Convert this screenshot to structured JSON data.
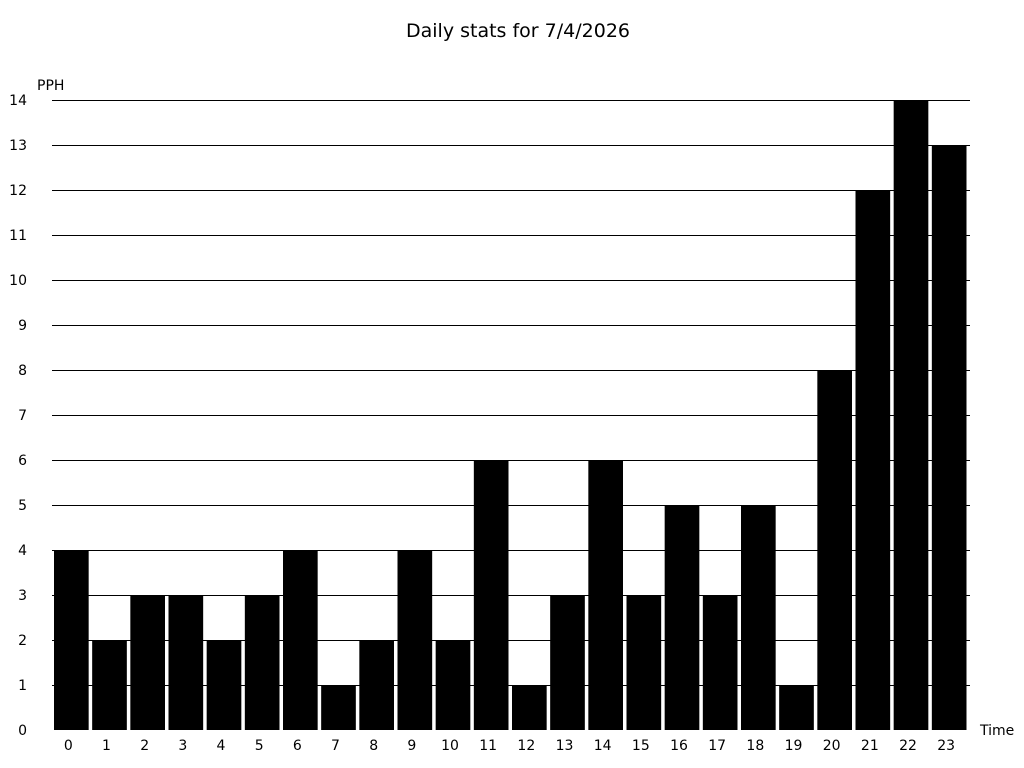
{
  "chart_data": {
    "type": "bar",
    "title": "Daily stats for 7/4/2026",
    "xlabel": "Time",
    "ylabel": "PPH",
    "categories": [
      "0",
      "1",
      "2",
      "3",
      "4",
      "5",
      "6",
      "7",
      "8",
      "9",
      "10",
      "11",
      "12",
      "13",
      "14",
      "15",
      "16",
      "17",
      "18",
      "19",
      "20",
      "21",
      "22",
      "23"
    ],
    "values": [
      4,
      2,
      3,
      3,
      2,
      3,
      4,
      1,
      2,
      4,
      2,
      6,
      1,
      3,
      6,
      3,
      5,
      3,
      5,
      1,
      8,
      12,
      14,
      13
    ],
    "ylim": [
      0,
      14
    ],
    "yticks": [
      "0",
      "1",
      "2",
      "3",
      "4",
      "5",
      "6",
      "7",
      "8",
      "9",
      "10",
      "11",
      "12",
      "13",
      "14"
    ],
    "grid": true,
    "bar_color": "#000000",
    "grid_color": "#000000"
  }
}
